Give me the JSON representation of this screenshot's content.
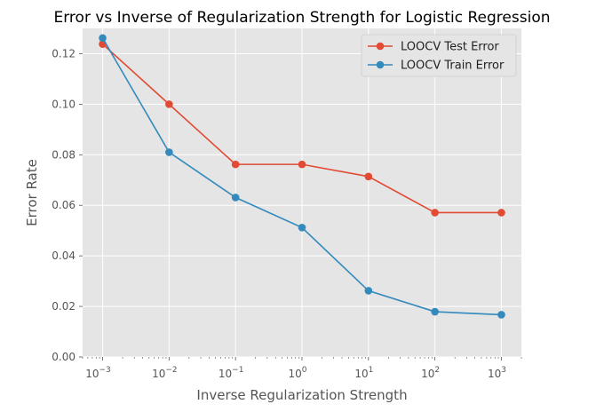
{
  "chart_data": {
    "type": "line",
    "title": "Error vs Inverse of Regularization Strength for Logistic Regression",
    "xlabel": "Inverse Regularization Strength",
    "ylabel": "Error Rate",
    "xscale": "log",
    "x": [
      0.001,
      0.01,
      0.1,
      1,
      10,
      100,
      1000
    ],
    "xlim": [
      0.0005,
      2000
    ],
    "ylim": [
      0,
      0.13
    ],
    "yticks": [
      "0.00",
      "0.02",
      "0.04",
      "0.06",
      "0.08",
      "0.10",
      "0.12"
    ],
    "ytick_values": [
      0,
      0.02,
      0.04,
      0.06,
      0.08,
      0.1,
      0.12
    ],
    "xtick_exponents": [
      "−3",
      "−2",
      "−1",
      "0",
      "1",
      "2",
      "3"
    ],
    "xtick_base": "10",
    "grid": true,
    "legend": "top-right",
    "series": [
      {
        "name": "LOOCV Test Error",
        "color": "#e24a33",
        "values": [
          0.1238,
          0.1,
          0.0762,
          0.0762,
          0.0714,
          0.0571,
          0.0571
        ]
      },
      {
        "name": "LOOCV Train Error",
        "color": "#348abd",
        "values": [
          0.1262,
          0.081,
          0.0631,
          0.0512,
          0.0262,
          0.0179,
          0.0167
        ]
      }
    ]
  }
}
